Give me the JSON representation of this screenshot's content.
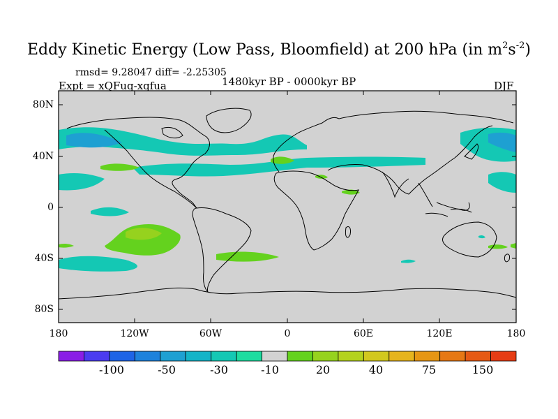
{
  "title": {
    "main": "Eddy Kinetic Energy (Low Pass, Bloomfield) at 200 hPa (in m",
    "sup1": "2",
    "mid": "s",
    "sup2": "-2",
    "end": ")"
  },
  "stats": "rmsd= 9.28047 diff= -2.25305",
  "experiment": "Expt = xQFuq-xqfua",
  "period": "1480kyr BP - 0000kyr BP",
  "season": "DJF",
  "axes": {
    "y_ticks": [
      "80N",
      "40N",
      "0",
      "40S",
      "80S"
    ],
    "x_ticks": [
      "180",
      "120W",
      "60W",
      "0",
      "60E",
      "120E",
      "180"
    ]
  },
  "colorbar": {
    "labels": [
      "-100",
      "-50",
      "-30",
      "-10",
      "20",
      "40",
      "75",
      "150"
    ],
    "colors": [
      "#8a1ee6",
      "#4b3cf0",
      "#1e64e6",
      "#1e82dc",
      "#1ea0d2",
      "#14b4c8",
      "#14c8b4",
      "#1edca0",
      "#d2d2d2",
      "#64d21e",
      "#96d21e",
      "#b4d21e",
      "#d2c81e",
      "#e6b41e",
      "#e69614",
      "#e67814",
      "#e65a14",
      "#e63c14"
    ]
  },
  "map": {
    "background_color": "#d2d2d2",
    "coast_color": "#000000"
  }
}
